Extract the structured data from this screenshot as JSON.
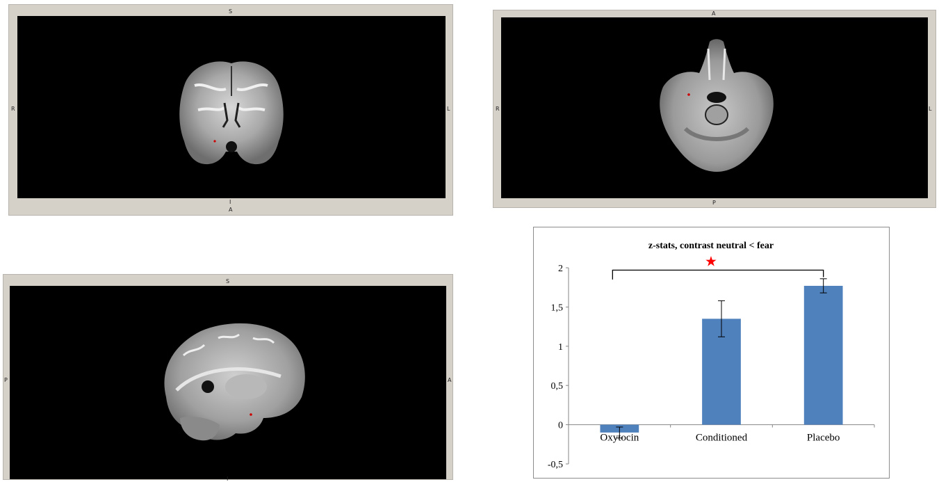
{
  "viewers": {
    "coronal": {
      "top": "S",
      "bottom_inner": "I",
      "bottom": "A",
      "left": "R",
      "right": "L"
    },
    "axial": {
      "top": "A",
      "bottom": "P",
      "left": "R",
      "right": "L"
    },
    "sagittal": {
      "top": "S",
      "bottom": "I",
      "left": "P",
      "right": "A"
    }
  },
  "colors": {
    "bar": "#4f81bd",
    "star": "#ff0000",
    "brain_marker": "#cc0000",
    "viewer_frame": "#d5d0c8"
  },
  "chart_data": {
    "type": "bar",
    "title": "z-stats, contrast neutral < fear",
    "xlabel": "",
    "ylabel": "",
    "categories": [
      "Oxytocin",
      "Conditioned",
      "Placebo"
    ],
    "values": [
      -0.1,
      1.35,
      1.77
    ],
    "error": [
      0.07,
      0.23,
      0.09
    ],
    "ylim": [
      -0.5,
      2
    ],
    "yticks": [
      2,
      1.5,
      1,
      0.5,
      0,
      -0.5
    ],
    "ytick_labels": [
      "2",
      "1,5",
      "1",
      "0,5",
      "0",
      "-0,5"
    ],
    "grid": false,
    "significance": {
      "from": "Oxytocin",
      "to": "Placebo",
      "marker": "★"
    }
  }
}
